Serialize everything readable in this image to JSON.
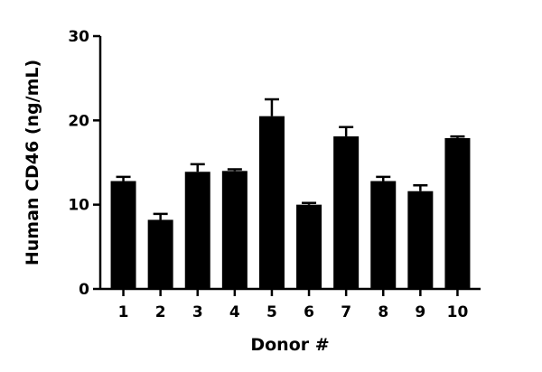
{
  "chart_data": {
    "type": "bar",
    "title": "",
    "xlabel": "Donor #",
    "ylabel": "Human CD46 (ng/mL)",
    "ylim": [
      0,
      30
    ],
    "yticks": [
      0,
      10,
      20,
      30
    ],
    "grid": false,
    "bar_color": "#000000",
    "categories": [
      "1",
      "2",
      "3",
      "4",
      "5",
      "6",
      "7",
      "8",
      "9",
      "10"
    ],
    "values": [
      12.8,
      8.2,
      13.9,
      14.0,
      20.5,
      10.0,
      18.1,
      12.8,
      11.6,
      17.9
    ],
    "errors": [
      0.5,
      0.7,
      0.9,
      0.2,
      2.0,
      0.2,
      1.1,
      0.5,
      0.7,
      0.2
    ]
  }
}
